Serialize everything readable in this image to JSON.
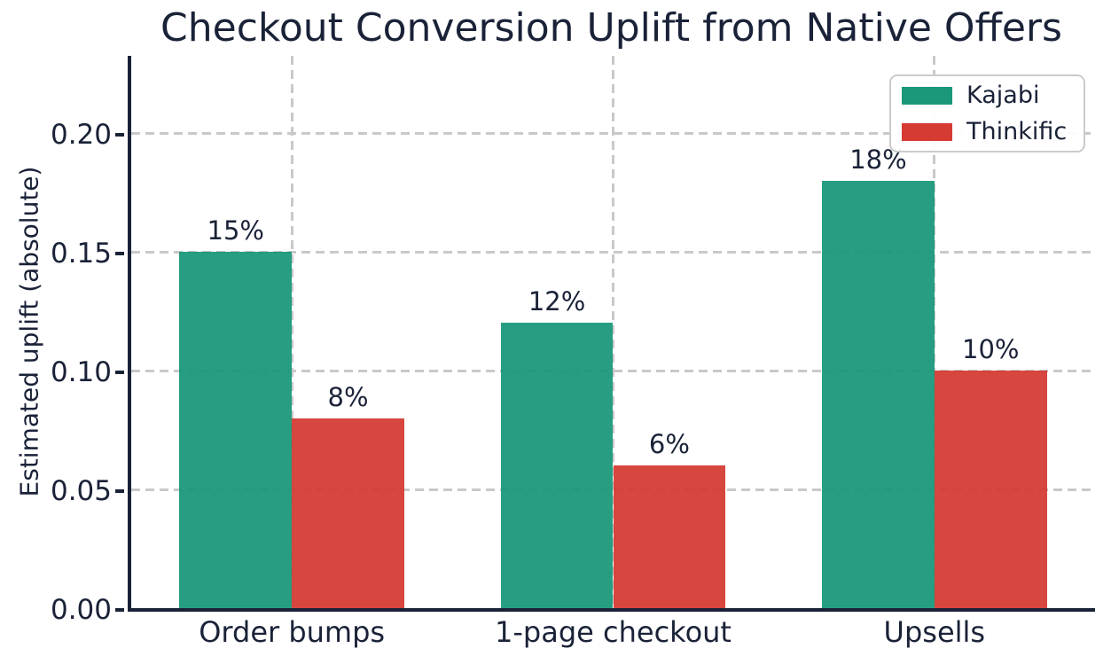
{
  "chart_data": {
    "type": "bar",
    "title": "Checkout Conversion Uplift from Native Offers",
    "xlabel": "",
    "ylabel": "Estimated uplift (absolute)",
    "categories": [
      "Order bumps",
      "1-page checkout",
      "Upsells"
    ],
    "series": [
      {
        "name": "Kajabi",
        "color": "#1a9879",
        "values": [
          0.15,
          0.12,
          0.18
        ],
        "value_labels": [
          "15%",
          "12%",
          "18%"
        ]
      },
      {
        "name": "Thinkific",
        "color": "#d53a33",
        "values": [
          0.08,
          0.06,
          0.1
        ],
        "value_labels": [
          "8%",
          "6%",
          "10%"
        ]
      }
    ],
    "ylim": [
      0,
      0.2325
    ],
    "yticks": {
      "values": [
        0,
        0.05,
        0.1,
        0.15,
        0.2
      ],
      "labels": [
        "0.00",
        "0.05",
        "0.10",
        "0.15",
        "0.20"
      ]
    },
    "bar_width_category_units": 0.35,
    "grid": "dashed, horizontal at y ticks and vertical at category centers",
    "legend_position": "upper right"
  },
  "styles": {
    "text_color": "#1a2238",
    "spine_color": "#1a2238",
    "grid_color": "#c9c9c9",
    "background_color": "#ffffff",
    "kajabi_color": "#1a9879",
    "thinkific_color": "#d53a33"
  }
}
